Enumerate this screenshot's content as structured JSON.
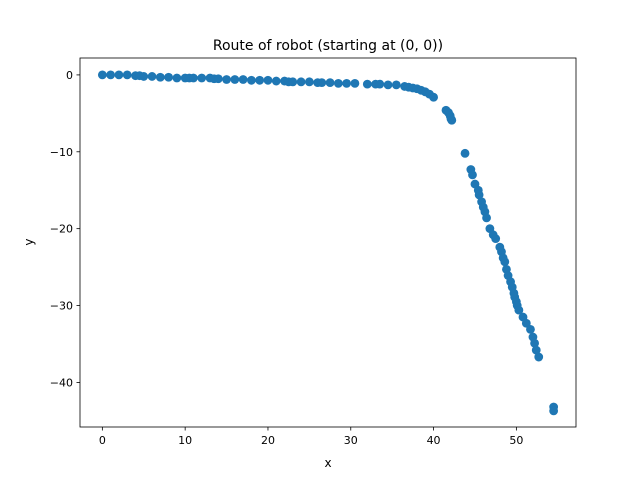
{
  "chart_data": {
    "type": "scatter",
    "title": "Route of robot (starting at (0, 0))",
    "xlabel": "x",
    "ylabel": "y",
    "xlim": [
      -2.7,
      57.2
    ],
    "ylim": [
      -45.8,
      2.2
    ],
    "xticks": [
      0,
      10,
      20,
      30,
      40,
      50
    ],
    "yticks": [
      0,
      -10,
      -20,
      -30,
      -40
    ],
    "ytick_labels": [
      "0",
      "−10",
      "−20",
      "−30",
      "−40"
    ],
    "grid": false,
    "marker_color": "#1f77b4",
    "points": [
      [
        0.0,
        0.0
      ],
      [
        1.0,
        0.0
      ],
      [
        2.0,
        0.0
      ],
      [
        3.0,
        0.0
      ],
      [
        4.0,
        -0.1
      ],
      [
        4.5,
        -0.1
      ],
      [
        5.0,
        -0.2
      ],
      [
        6.0,
        -0.2
      ],
      [
        7.0,
        -0.3
      ],
      [
        8.0,
        -0.3
      ],
      [
        9.0,
        -0.4
      ],
      [
        10.0,
        -0.4
      ],
      [
        10.5,
        -0.4
      ],
      [
        11.0,
        -0.4
      ],
      [
        12.0,
        -0.4
      ],
      [
        13.0,
        -0.4
      ],
      [
        13.5,
        -0.5
      ],
      [
        14.0,
        -0.5
      ],
      [
        15.0,
        -0.6
      ],
      [
        16.0,
        -0.6
      ],
      [
        17.0,
        -0.6
      ],
      [
        18.0,
        -0.7
      ],
      [
        19.0,
        -0.7
      ],
      [
        20.0,
        -0.7
      ],
      [
        21.0,
        -0.8
      ],
      [
        22.0,
        -0.8
      ],
      [
        22.5,
        -0.9
      ],
      [
        23.0,
        -0.9
      ],
      [
        24.0,
        -0.9
      ],
      [
        25.0,
        -0.9
      ],
      [
        26.0,
        -1.0
      ],
      [
        26.5,
        -1.0
      ],
      [
        27.5,
        -1.0
      ],
      [
        28.5,
        -1.1
      ],
      [
        29.5,
        -1.1
      ],
      [
        30.5,
        -1.1
      ],
      [
        32.0,
        -1.2
      ],
      [
        33.0,
        -1.2
      ],
      [
        33.5,
        -1.2
      ],
      [
        34.5,
        -1.3
      ],
      [
        35.5,
        -1.3
      ],
      [
        36.5,
        -1.5
      ],
      [
        37.0,
        -1.6
      ],
      [
        37.5,
        -1.7
      ],
      [
        38.0,
        -1.8
      ],
      [
        38.5,
        -2.0
      ],
      [
        39.0,
        -2.2
      ],
      [
        39.5,
        -2.5
      ],
      [
        40.0,
        -2.9
      ],
      [
        41.5,
        -4.6
      ],
      [
        41.8,
        -4.9
      ],
      [
        42.0,
        -5.3
      ],
      [
        42.1,
        -5.7
      ],
      [
        42.2,
        -5.9
      ],
      [
        43.8,
        -10.2
      ],
      [
        44.5,
        -12.3
      ],
      [
        44.7,
        -13.0
      ],
      [
        45.0,
        -14.2
      ],
      [
        45.4,
        -15.0
      ],
      [
        45.5,
        -15.6
      ],
      [
        45.8,
        -16.5
      ],
      [
        46.0,
        -17.2
      ],
      [
        46.2,
        -17.8
      ],
      [
        46.4,
        -18.6
      ],
      [
        46.8,
        -20.0
      ],
      [
        47.2,
        -20.8
      ],
      [
        47.5,
        -21.3
      ],
      [
        48.0,
        -22.4
      ],
      [
        48.2,
        -23.0
      ],
      [
        48.4,
        -23.8
      ],
      [
        48.6,
        -24.3
      ],
      [
        48.8,
        -25.3
      ],
      [
        49.0,
        -26.1
      ],
      [
        49.3,
        -26.9
      ],
      [
        49.5,
        -27.6
      ],
      [
        49.7,
        -28.4
      ],
      [
        49.8,
        -28.9
      ],
      [
        50.0,
        -29.5
      ],
      [
        50.1,
        -30.0
      ],
      [
        50.3,
        -30.6
      ],
      [
        50.8,
        -31.5
      ],
      [
        51.2,
        -32.3
      ],
      [
        51.7,
        -33.1
      ],
      [
        52.0,
        -34.1
      ],
      [
        52.2,
        -34.9
      ],
      [
        52.4,
        -35.8
      ],
      [
        52.7,
        -36.7
      ],
      [
        54.5,
        -43.2
      ],
      [
        54.5,
        -43.7
      ]
    ]
  }
}
